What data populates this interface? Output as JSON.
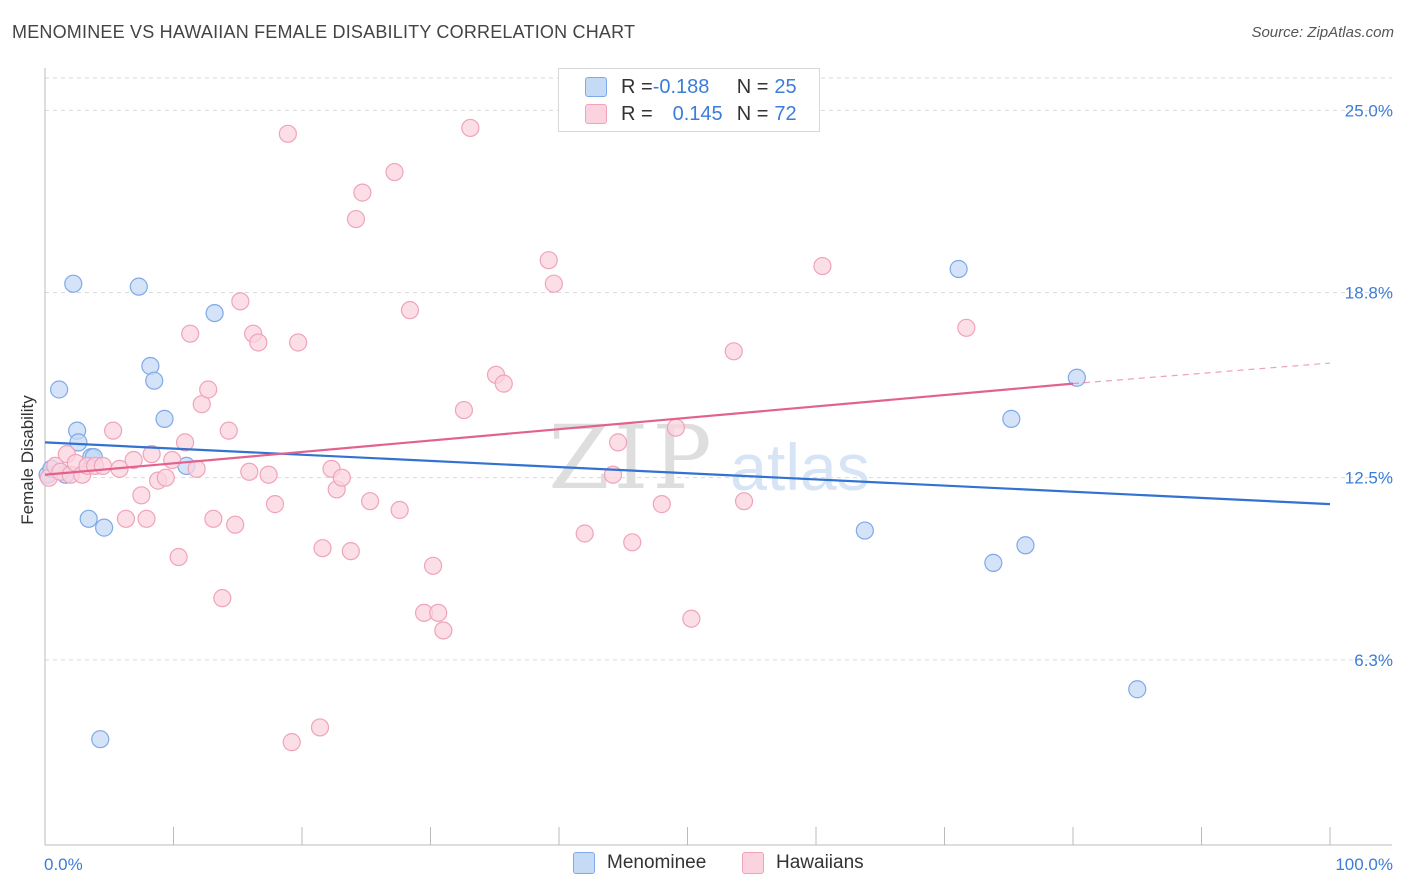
{
  "title": "MENOMINEE VS HAWAIIAN FEMALE DISABILITY CORRELATION CHART",
  "source": "Source: ZipAtlas.com",
  "watermark": {
    "zip": "ZIP",
    "atlas": "atlas"
  },
  "legend": {
    "rows": [
      {
        "r_label": "R = ",
        "r_value": "-0.188",
        "n_label": "N = ",
        "n_value": "25",
        "color": "#a9c7f0"
      },
      {
        "r_label": "R = ",
        "r_value": "0.145",
        "n_label": "N = ",
        "n_value": "72",
        "color": "#f7b5c8"
      }
    ]
  },
  "chart_data": {
    "type": "scatter",
    "xlabel": "",
    "ylabel": "Female Disability",
    "x_unit": "%",
    "xlim": [
      0,
      100
    ],
    "ylim": [
      0,
      26.1
    ],
    "x_tick_labels": [
      {
        "value": 0,
        "label": "0.0%"
      },
      {
        "value": 100,
        "label": "100.0%"
      }
    ],
    "y_ticks": [
      {
        "value": 6.3,
        "label": "6.3%"
      },
      {
        "value": 12.5,
        "label": "12.5%"
      },
      {
        "value": 18.8,
        "label": "18.8%"
      },
      {
        "value": 25.0,
        "label": "25.0%"
      }
    ],
    "grid": "horizontal dashed",
    "legend_position": "top-center",
    "series": [
      {
        "name": "Menominee",
        "color": "#7fa9e8",
        "fill": "#c5daf5",
        "line_color": "#3272d0",
        "trend": {
          "x": [
            0,
            100
          ],
          "y": [
            13.7,
            11.6
          ]
        },
        "points": [
          [
            0.2,
            12.6
          ],
          [
            1.1,
            15.5
          ],
          [
            1.6,
            12.6
          ],
          [
            2.2,
            19.1
          ],
          [
            2.5,
            14.1
          ],
          [
            2.6,
            13.7
          ],
          [
            3.4,
            11.1
          ],
          [
            3.6,
            13.2
          ],
          [
            3.8,
            13.2
          ],
          [
            4.3,
            3.6
          ],
          [
            4.6,
            10.8
          ],
          [
            7.3,
            19.0
          ],
          [
            8.2,
            16.3
          ],
          [
            8.5,
            15.8
          ],
          [
            9.3,
            14.5
          ],
          [
            11.0,
            12.9
          ],
          [
            13.2,
            18.1
          ],
          [
            63.8,
            10.7
          ],
          [
            71.1,
            19.6
          ],
          [
            73.8,
            9.6
          ],
          [
            75.2,
            14.5
          ],
          [
            76.3,
            10.2
          ],
          [
            80.3,
            15.9
          ],
          [
            85.0,
            5.3
          ],
          [
            0.5,
            12.8
          ]
        ]
      },
      {
        "name": "Hawaiians",
        "color": "#f0a3ba",
        "fill": "#fbd3df",
        "line_color": "#e2628f",
        "trend": {
          "x": [
            0,
            80
          ],
          "y": [
            12.6,
            15.7
          ]
        },
        "trend_extension": {
          "x": [
            80,
            100
          ],
          "y": [
            15.7,
            16.4
          ]
        },
        "points": [
          [
            0.3,
            12.5
          ],
          [
            0.8,
            12.9
          ],
          [
            1.2,
            12.7
          ],
          [
            1.7,
            13.3
          ],
          [
            2.0,
            12.6
          ],
          [
            2.4,
            13.0
          ],
          [
            2.9,
            12.6
          ],
          [
            3.3,
            12.9
          ],
          [
            3.9,
            12.9
          ],
          [
            4.5,
            12.9
          ],
          [
            5.3,
            14.1
          ],
          [
            5.8,
            12.8
          ],
          [
            6.3,
            11.1
          ],
          [
            6.9,
            13.1
          ],
          [
            7.5,
            11.9
          ],
          [
            7.9,
            11.1
          ],
          [
            8.3,
            13.3
          ],
          [
            8.8,
            12.4
          ],
          [
            9.4,
            12.5
          ],
          [
            9.9,
            13.1
          ],
          [
            10.4,
            9.8
          ],
          [
            10.9,
            13.7
          ],
          [
            11.3,
            17.4
          ],
          [
            11.8,
            12.8
          ],
          [
            12.2,
            15.0
          ],
          [
            12.7,
            15.5
          ],
          [
            13.1,
            11.1
          ],
          [
            13.8,
            8.4
          ],
          [
            14.3,
            14.1
          ],
          [
            14.8,
            10.9
          ],
          [
            15.2,
            18.5
          ],
          [
            15.9,
            12.7
          ],
          [
            16.2,
            17.4
          ],
          [
            16.6,
            17.1
          ],
          [
            17.4,
            12.6
          ],
          [
            17.9,
            11.6
          ],
          [
            18.9,
            24.2
          ],
          [
            19.2,
            3.5
          ],
          [
            19.7,
            17.1
          ],
          [
            21.4,
            4.0
          ],
          [
            21.6,
            10.1
          ],
          [
            22.3,
            12.8
          ],
          [
            22.7,
            12.1
          ],
          [
            23.1,
            12.5
          ],
          [
            23.8,
            10.0
          ],
          [
            24.2,
            21.3
          ],
          [
            24.7,
            22.2
          ],
          [
            25.3,
            11.7
          ],
          [
            27.2,
            22.9
          ],
          [
            27.6,
            11.4
          ],
          [
            28.4,
            18.2
          ],
          [
            29.5,
            7.9
          ],
          [
            30.2,
            9.5
          ],
          [
            30.6,
            7.9
          ],
          [
            31.0,
            7.3
          ],
          [
            32.6,
            14.8
          ],
          [
            33.1,
            24.4
          ],
          [
            35.1,
            16.0
          ],
          [
            35.7,
            15.7
          ],
          [
            39.2,
            19.9
          ],
          [
            39.6,
            19.1
          ],
          [
            42.0,
            10.6
          ],
          [
            44.2,
            12.6
          ],
          [
            44.6,
            13.7
          ],
          [
            45.7,
            10.3
          ],
          [
            48.0,
            11.6
          ],
          [
            49.1,
            14.2
          ],
          [
            50.3,
            7.7
          ],
          [
            53.6,
            16.8
          ],
          [
            54.4,
            11.7
          ],
          [
            60.5,
            19.7
          ],
          [
            71.7,
            17.6
          ]
        ]
      }
    ]
  }
}
